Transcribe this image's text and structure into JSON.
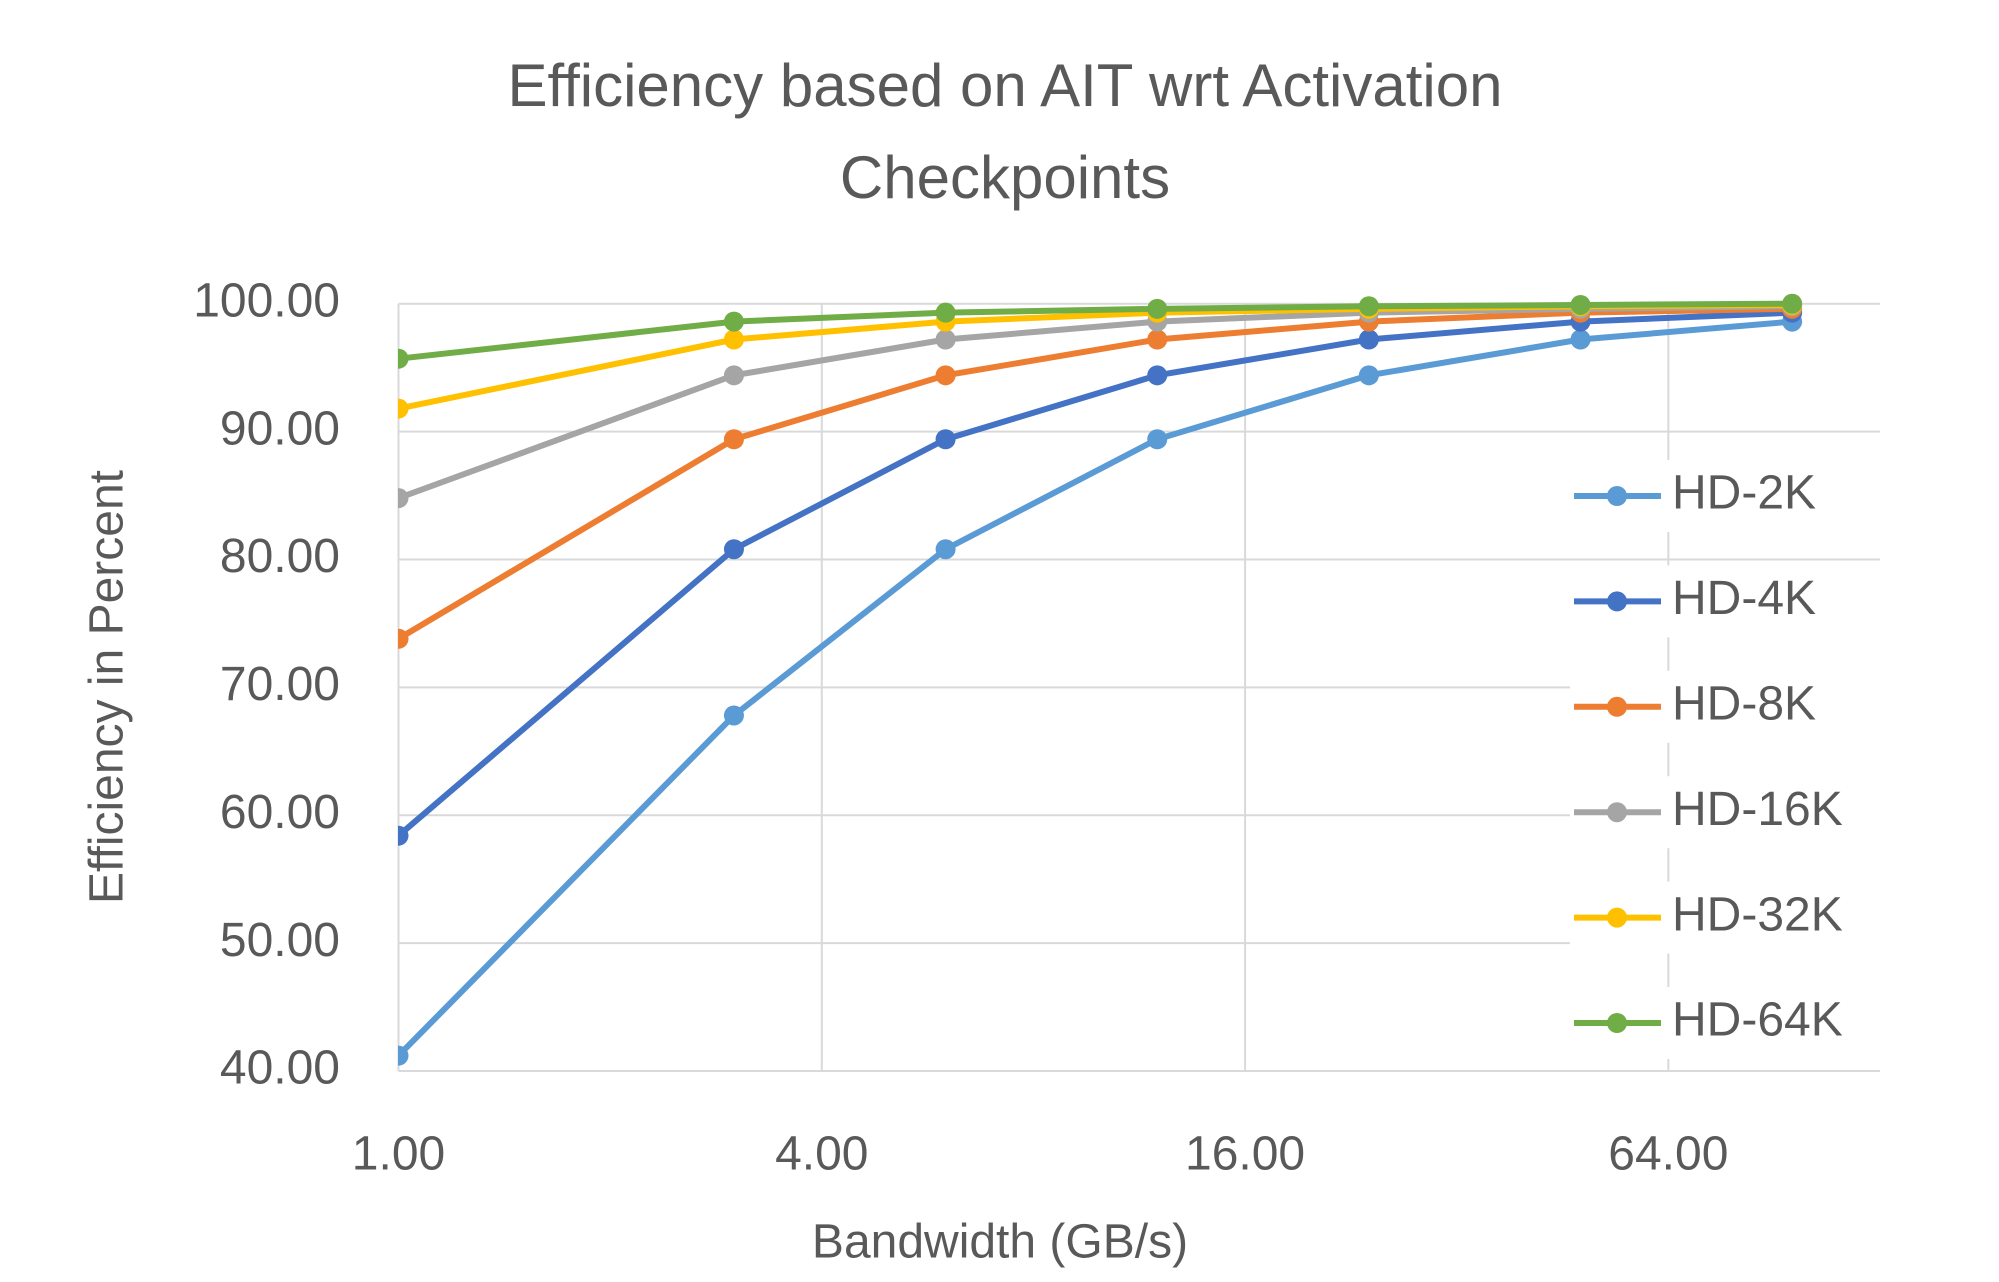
{
  "chart_data": {
    "type": "line",
    "title": "Efficiency based on AIT wrt Activation Checkpoints",
    "x_label": "Bandwidth (GB/s)",
    "y_label": "Efficiency in Percent",
    "x": [
      1,
      3,
      6,
      12,
      24,
      48,
      96
    ],
    "xscale": "log2",
    "xlim": [
      1,
      128
    ],
    "xticks": [
      {
        "value": 1,
        "label": "1.00"
      },
      {
        "value": 4,
        "label": "4.00"
      },
      {
        "value": 16,
        "label": "16.00"
      },
      {
        "value": 64,
        "label": "64.00"
      }
    ],
    "ylim": [
      40,
      100
    ],
    "yticks": [
      {
        "value": 40,
        "label": "40.00"
      },
      {
        "value": 50,
        "label": "50.00"
      },
      {
        "value": 60,
        "label": "60.00"
      },
      {
        "value": 70,
        "label": "70.00"
      },
      {
        "value": 80,
        "label": "80.00"
      },
      {
        "value": 90,
        "label": "90.00"
      },
      {
        "value": 100,
        "label": "100.00"
      }
    ],
    "grid": true,
    "legend": "right",
    "series": [
      {
        "name": "HD-2K",
        "color": "#5b9bd5",
        "values": [
          41.2,
          67.8,
          80.8,
          89.4,
          94.4,
          97.2,
          98.6
        ]
      },
      {
        "name": "HD-4K",
        "color": "#4472c4",
        "values": [
          58.4,
          80.8,
          89.4,
          94.4,
          97.2,
          98.6,
          99.3
        ]
      },
      {
        "name": "HD-8K",
        "color": "#ed7d31",
        "values": [
          73.8,
          89.4,
          94.4,
          97.2,
          98.6,
          99.3,
          99.6
        ]
      },
      {
        "name": "HD-16K",
        "color": "#a5a5a5",
        "values": [
          84.8,
          94.4,
          97.2,
          98.6,
          99.3,
          99.6,
          99.8
        ]
      },
      {
        "name": "HD-32K",
        "color": "#ffc000",
        "values": [
          91.8,
          97.2,
          98.6,
          99.3,
          99.6,
          99.8,
          99.9
        ]
      },
      {
        "name": "HD-64K",
        "color": "#70ad47",
        "values": [
          95.7,
          98.6,
          99.3,
          99.6,
          99.8,
          99.9,
          100.0
        ]
      }
    ]
  }
}
